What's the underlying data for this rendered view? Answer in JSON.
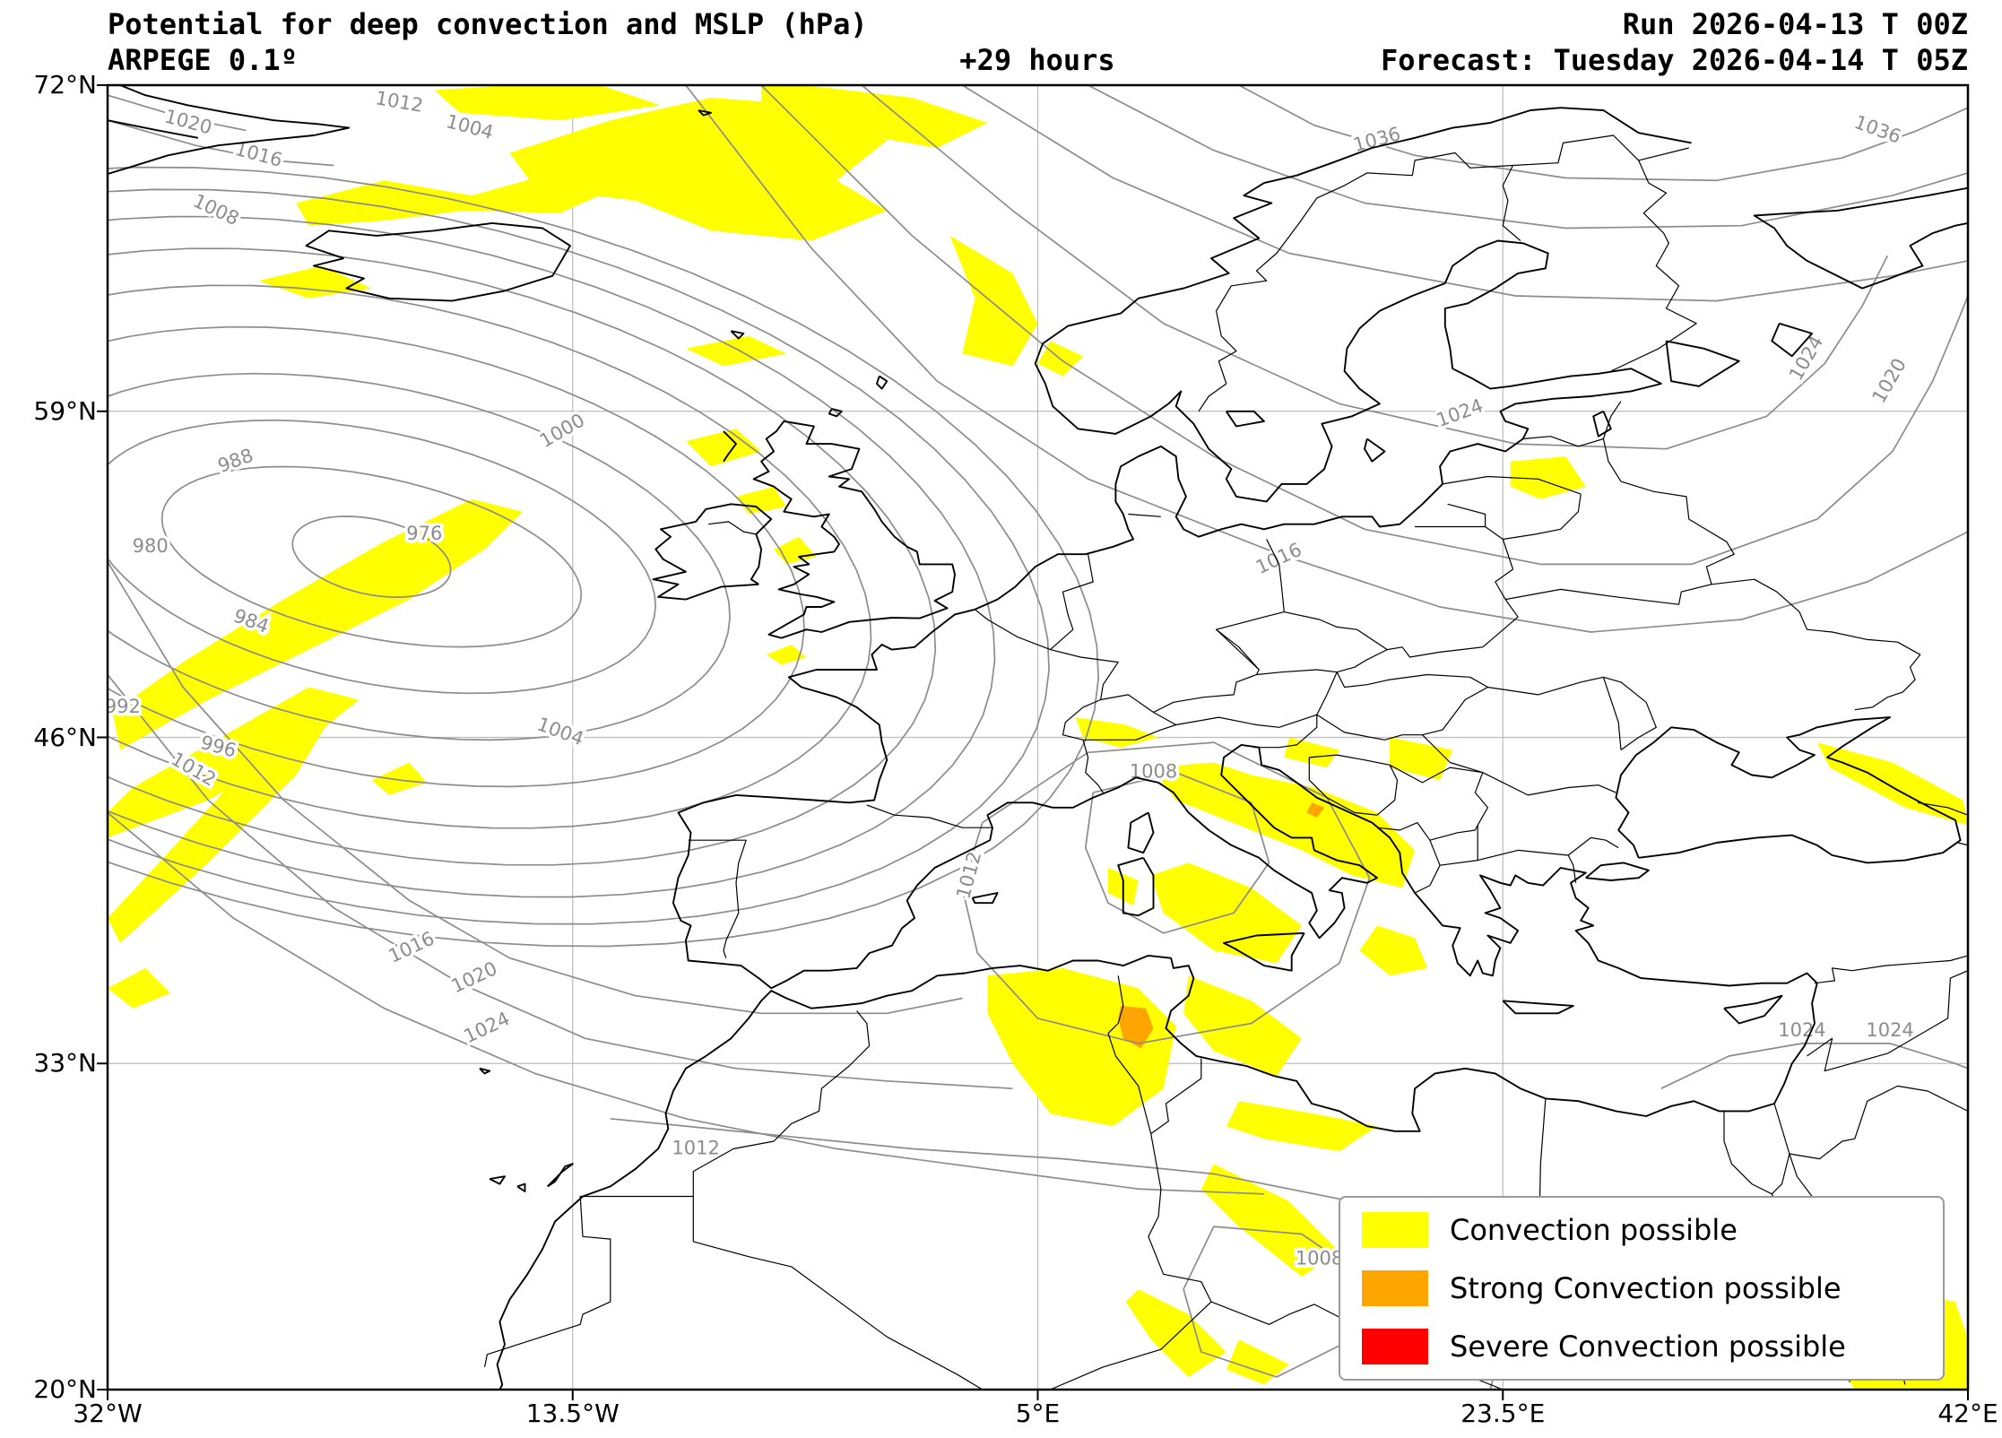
{
  "header": {
    "title": "Potential for deep convection and MSLP (hPa)",
    "model": "ARPEGE 0.1º",
    "lead_time": "+29 hours",
    "run": "Run 2026-04-13 T 00Z",
    "forecast": "Forecast: Tuesday 2026-04-14 T 05Z"
  },
  "axes": {
    "lat_ticks": [
      {
        "label": "72°N",
        "deg": 72
      },
      {
        "label": "59°N",
        "deg": 59
      },
      {
        "label": "46°N",
        "deg": 46
      },
      {
        "label": "33°N",
        "deg": 33
      },
      {
        "label": "20°N",
        "deg": 20
      }
    ],
    "lon_ticks": [
      {
        "label": "32°W",
        "deg": -32
      },
      {
        "label": "13.5°W",
        "deg": -13.5
      },
      {
        "label": "5°E",
        "deg": 5
      },
      {
        "label": "23.5°E",
        "deg": 23.5
      },
      {
        "label": "42°E",
        "deg": 42
      }
    ]
  },
  "legend": {
    "items": [
      {
        "label": "Convection possible",
        "color": "#ffff00"
      },
      {
        "label": "Strong Convection possible",
        "color": "#ffa500"
      },
      {
        "label": "Severe Convection possible",
        "color": "#ff0000"
      }
    ]
  },
  "map": {
    "extent": {
      "lon_min": -32,
      "lon_max": 42,
      "lat_min": 20,
      "lat_max": 72
    },
    "colors": {
      "isobar": "#8c8c8c",
      "grid": "#bbbbbb",
      "coast": "#000000"
    },
    "isobar_labels": [
      {
        "t": "976",
        "lon": -19.4,
        "lat": 54.1
      },
      {
        "t": "980",
        "lon": -30.3,
        "lat": 53.6
      },
      {
        "t": "984",
        "lon": -26.3,
        "lat": 50.6,
        "rot": 20
      },
      {
        "t": "988",
        "lon": -26.9,
        "lat": 57.0,
        "rot": -20
      },
      {
        "t": "992",
        "lon": -31.4,
        "lat": 47.2
      },
      {
        "t": "996",
        "lon": -27.6,
        "lat": 45.6,
        "rot": 15
      },
      {
        "t": "1000",
        "lon": -13.9,
        "lat": 58.2,
        "rot": -30
      },
      {
        "t": "1004",
        "lon": -17.6,
        "lat": 70.3,
        "rot": 15
      },
      {
        "t": "1004",
        "lon": -14.0,
        "lat": 46.2,
        "rot": 20
      },
      {
        "t": "1008",
        "lon": -27.7,
        "lat": 67.0,
        "rot": 25
      },
      {
        "t": "1008",
        "lon": 9.6,
        "lat": 44.6
      },
      {
        "t": "1008",
        "lon": 16.2,
        "lat": 25.2
      },
      {
        "t": "1012",
        "lon": -20.4,
        "lat": 71.3,
        "rot": 10
      },
      {
        "t": "1012",
        "lon": -28.6,
        "lat": 44.7,
        "rot": 30
      },
      {
        "t": "1012",
        "lon": 2.3,
        "lat": 40.5,
        "rot": -75
      },
      {
        "t": "1012",
        "lon": -8.6,
        "lat": 29.6
      },
      {
        "t": "1016",
        "lon": -19.9,
        "lat": 37.6,
        "rot": -25
      },
      {
        "t": "1016",
        "lon": 14.6,
        "lat": 53.1,
        "rot": -25
      },
      {
        "t": "1016",
        "lon": -26.0,
        "lat": 69.2,
        "rot": 15
      },
      {
        "t": "1020",
        "lon": -17.4,
        "lat": 36.4,
        "rot": -25
      },
      {
        "t": "1020",
        "lon": -28.8,
        "lat": 70.5,
        "rot": 15
      },
      {
        "t": "1020",
        "lon": 38.9,
        "lat": 60.2,
        "rot": -60
      },
      {
        "t": "1024",
        "lon": -16.9,
        "lat": 34.4,
        "rot": -25
      },
      {
        "t": "1024",
        "lon": 21.8,
        "lat": 58.9,
        "rot": -20
      },
      {
        "t": "1024",
        "lon": 35.6,
        "lat": 61.1,
        "rot": -60
      },
      {
        "t": "1024",
        "lon": 35.4,
        "lat": 34.3
      },
      {
        "t": "1024",
        "lon": 38.9,
        "lat": 34.3
      },
      {
        "t": "1036",
        "lon": 18.5,
        "lat": 69.8,
        "rot": -15
      },
      {
        "t": "1036",
        "lon": 38.4,
        "lat": 70.2,
        "rot": 20
      }
    ]
  }
}
